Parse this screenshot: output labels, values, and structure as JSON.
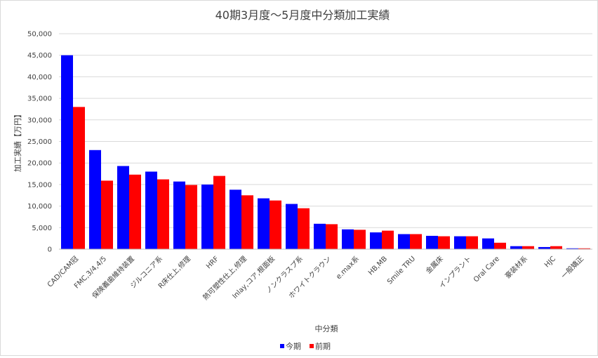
{
  "chart_data": {
    "type": "bar",
    "title": "40期3月度～5月度中分類加工実績",
    "xlabel": "中分類",
    "ylabel": "加工実績【万円】",
    "ylim": [
      0,
      50000
    ],
    "yticks": [
      "0",
      "5,000",
      "10,000",
      "15,000",
      "20,000",
      "25,000",
      "30,000",
      "35,000",
      "40,000",
      "45,000",
      "50,000"
    ],
    "grid": true,
    "legend_position": "bottom",
    "categories": [
      "CAD/CAM冠",
      "FMC,3/4,4/5",
      "保険義歯維持装置",
      "ジルコニア系",
      "R床仕上,修理",
      "HRF",
      "熱可塑性仕上,修理",
      "Inlay,コア,根面板",
      "ノンクラスプ系",
      "ホワイトクラウン",
      "e.max系",
      "HB,MB",
      "Smile TRU",
      "金属床",
      "インプラント",
      "Oral Care",
      "豪装材系",
      "HJC",
      "一般矯正"
    ],
    "series": [
      {
        "name": "今期",
        "color": "#0000ff",
        "values": [
          45000,
          23000,
          19300,
          18000,
          15700,
          15000,
          13800,
          11800,
          10500,
          5900,
          4600,
          3900,
          3500,
          3100,
          3000,
          2500,
          700,
          500,
          200
        ]
      },
      {
        "name": "前期",
        "color": "#ff0000",
        "values": [
          33000,
          15900,
          17300,
          16200,
          14900,
          17000,
          12500,
          11300,
          9500,
          5800,
          4500,
          4300,
          3500,
          3000,
          3000,
          1500,
          700,
          700,
          200
        ]
      }
    ]
  }
}
